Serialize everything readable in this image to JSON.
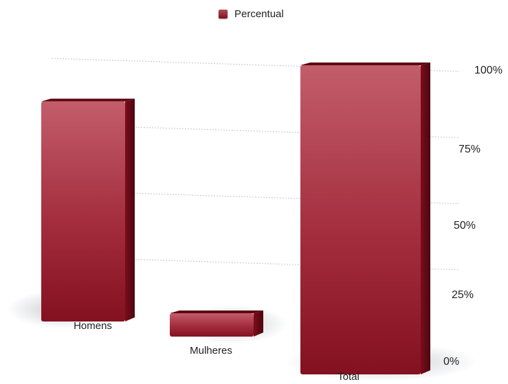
{
  "chart_data": {
    "type": "bar",
    "categories": [
      "Homens",
      "Mulheres",
      "Total"
    ],
    "series": [
      {
        "name": "Percentual",
        "values": [
          88,
          8,
          100
        ]
      }
    ],
    "y_ticks": [
      "0%",
      "25%",
      "50%",
      "75%",
      "100%"
    ],
    "ylim": [
      0,
      100
    ],
    "legend_position": "top-center",
    "grid": true,
    "perspective": "3d",
    "colors": {
      "bar": "#9e2536",
      "bar_light": "#c15a67",
      "bar_dark": "#6f0d1b"
    }
  }
}
